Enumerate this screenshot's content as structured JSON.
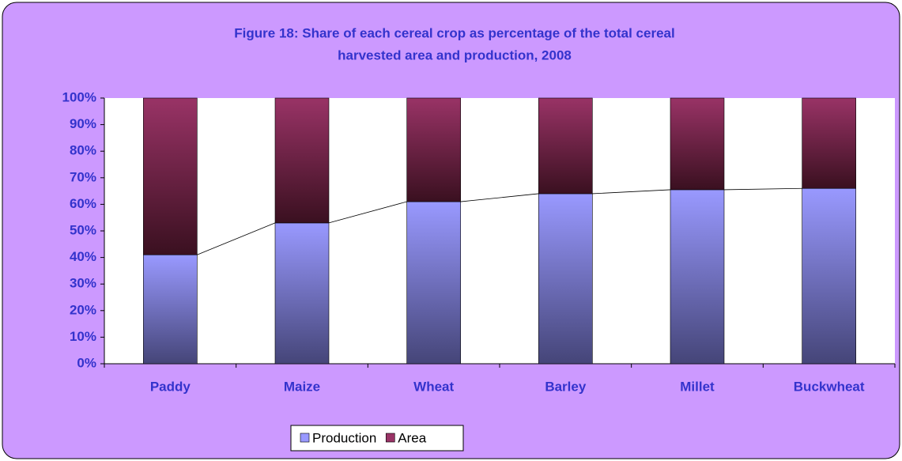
{
  "chart_data": {
    "type": "stacked_bar",
    "title": [
      "Figure 18: Share of each cereal crop as percentage of the total cereal",
      "harvested area and production, 2008"
    ],
    "categories": [
      "Paddy",
      "Maize",
      "Wheat",
      "Barley",
      "Millet",
      "Buckwheat"
    ],
    "series": [
      {
        "name": "Production",
        "color": "#9999ff",
        "values": [
          41,
          53,
          61,
          64,
          65.5,
          66
        ]
      },
      {
        "name": "Area",
        "color": "#993366",
        "values": [
          59,
          47,
          39,
          36,
          34.5,
          34
        ]
      }
    ],
    "ylim": [
      0,
      100
    ],
    "yticks": [
      {
        "value": 0,
        "label": "0%"
      },
      {
        "value": 10,
        "label": "10%"
      },
      {
        "value": 20,
        "label": "20%"
      },
      {
        "value": 30,
        "label": "30%"
      },
      {
        "value": 40,
        "label": "40%"
      },
      {
        "value": 50,
        "label": "50%"
      },
      {
        "value": 60,
        "label": "60%"
      },
      {
        "value": 70,
        "label": "70%"
      },
      {
        "value": 80,
        "label": "80%"
      },
      {
        "value": 90,
        "label": "90%"
      },
      {
        "value": 100,
        "label": "100%"
      }
    ],
    "legend": "bottom"
  }
}
